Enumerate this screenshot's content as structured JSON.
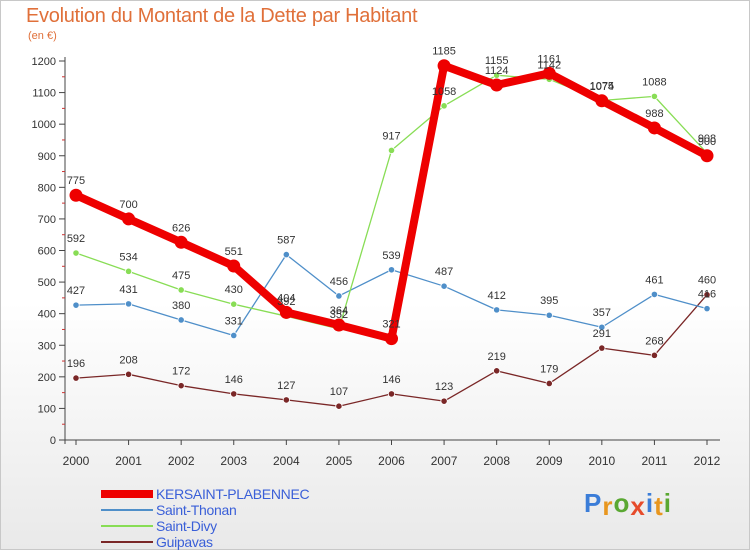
{
  "header": {
    "title": "Evolution du Montant de la Dette par Habitant",
    "unit": "(en €)"
  },
  "logo": {
    "text": "Proxiti"
  },
  "chart_data": {
    "type": "line",
    "x": [
      "2000",
      "2001",
      "2002",
      "2003",
      "2004",
      "2005",
      "2006",
      "2007",
      "2008",
      "2009",
      "2010",
      "2011",
      "2012"
    ],
    "ylim": [
      0,
      1200
    ],
    "yticks": [
      "0",
      "100",
      "200",
      "300",
      "400",
      "500",
      "600",
      "700",
      "800",
      "900",
      "1000",
      "1100",
      "1200"
    ],
    "grid": false,
    "legend_position": "bottom-left",
    "series": [
      {
        "name": "KERSAINT-PLABENNEC",
        "color": "#ee0000",
        "values": [
          775,
          700,
          626,
          551,
          404,
          364,
          321,
          1185,
          1124,
          1161,
          1074,
          988,
          900
        ],
        "labels": [
          "775",
          "700",
          "626",
          "551",
          "404",
          "364",
          "321",
          "1185",
          "1124",
          "1161",
          "1074",
          "988",
          "900"
        ]
      },
      {
        "name": "Saint-Thonan",
        "color": "#4f8fc9",
        "values": [
          427,
          431,
          380,
          331,
          587,
          456,
          539,
          487,
          412,
          395,
          357,
          461,
          416
        ],
        "labels": [
          "427",
          "431",
          "380",
          "331",
          "587",
          "456",
          "539",
          "487",
          "412",
          "395",
          "357",
          "461",
          "416"
        ]
      },
      {
        "name": "Saint-Divy",
        "color": "#88dd55",
        "values": [
          592,
          534,
          475,
          430,
          392,
          352,
          917,
          1058,
          1155,
          1142,
          1075,
          1088,
          908
        ],
        "labels": [
          "592",
          "534",
          "475",
          "430",
          "392",
          "352",
          "917",
          "1058",
          "1155",
          "1142",
          "1075",
          "1088",
          "908"
        ]
      },
      {
        "name": "Guipavas",
        "color": "#7a2727",
        "values": [
          196,
          208,
          172,
          146,
          127,
          107,
          146,
          123,
          219,
          179,
          291,
          268,
          460
        ],
        "labels": [
          "196",
          "208",
          "172",
          "146",
          "127",
          "107",
          "146",
          "123",
          "219",
          "179",
          "291",
          "268",
          "460"
        ]
      }
    ]
  }
}
